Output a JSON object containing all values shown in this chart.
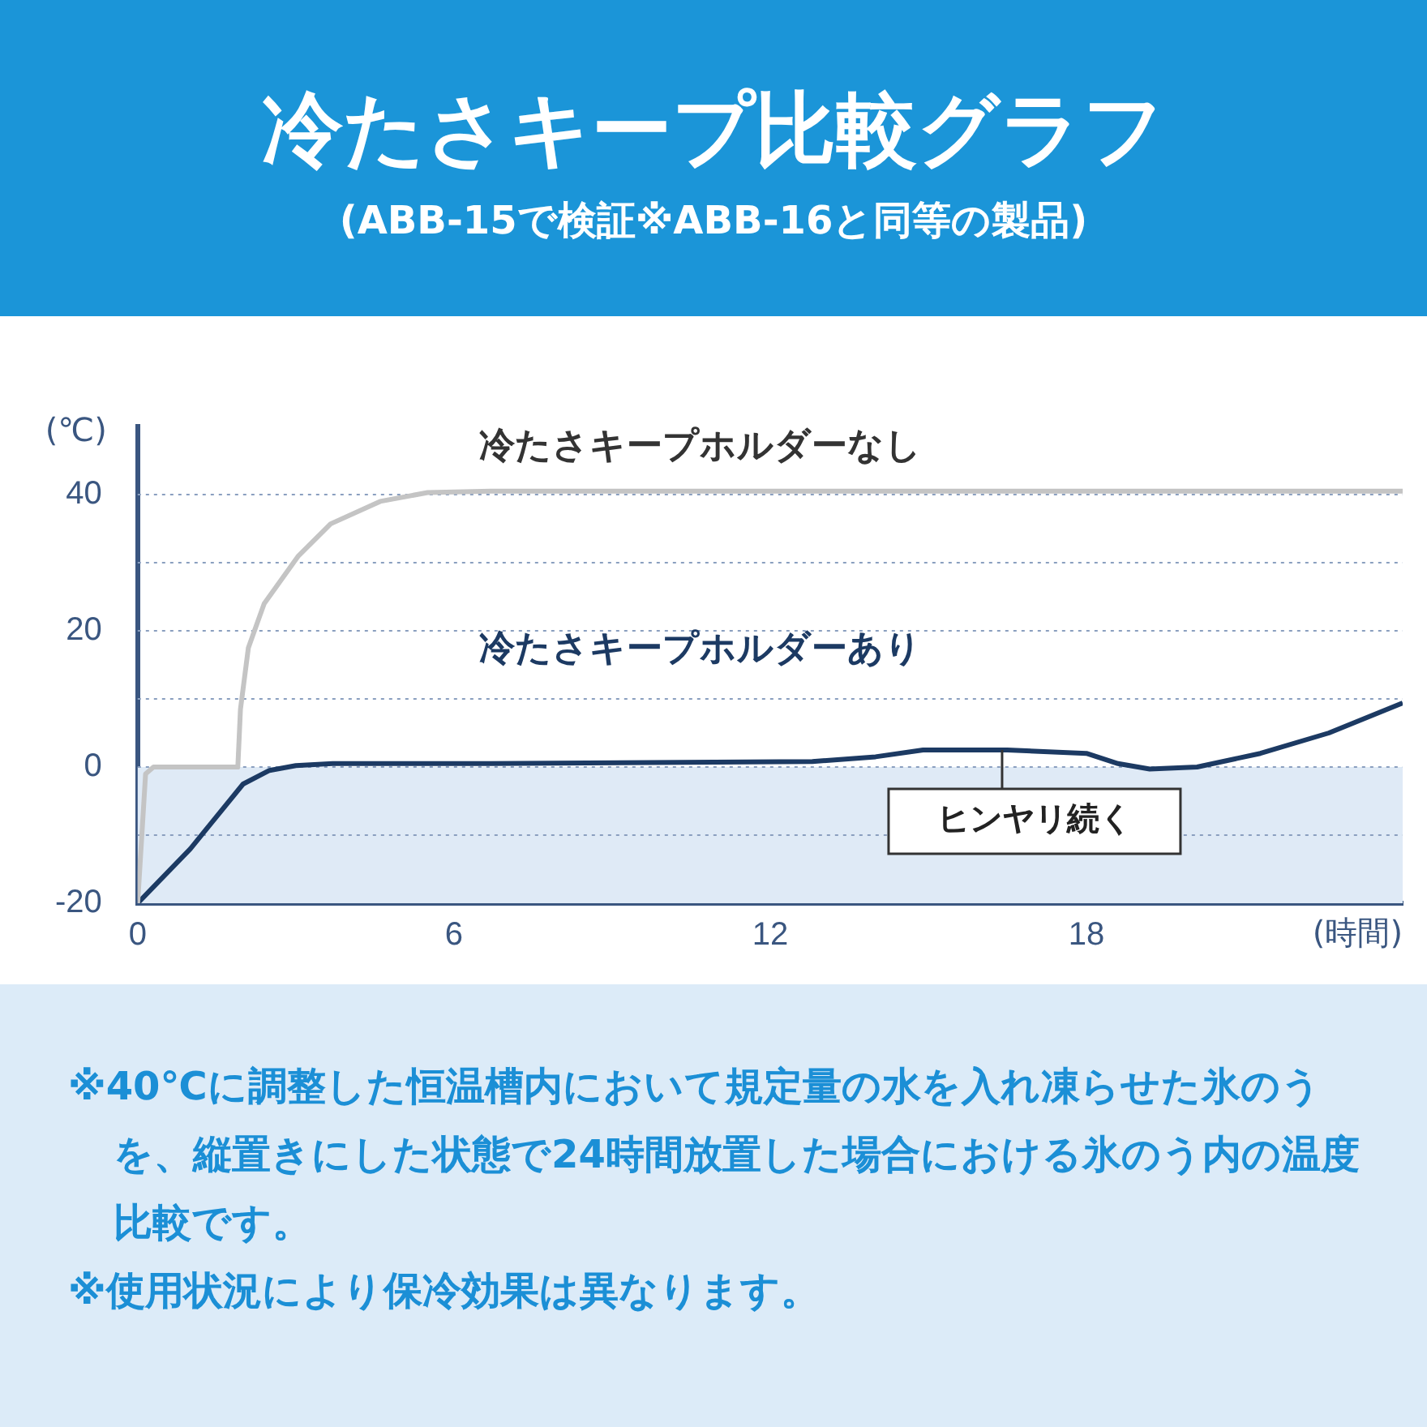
{
  "chart_data": {
    "type": "line",
    "title": "冷たさキープ比較グラフ",
    "subtitle": "(ABB-15で検証※ABB-16と同等の製品)",
    "xlabel": "(時間)",
    "ylabel": "(℃)",
    "xlim": [
      0,
      24
    ],
    "xticks": [
      0,
      6,
      12,
      18
    ],
    "ylim": [
      -20,
      50
    ],
    "yticks": [
      -20,
      {
        "value": -10,
        "label": null
      },
      0,
      {
        "value": 10,
        "label": null
      },
      20,
      {
        "value": 30,
        "label": null
      },
      40
    ],
    "grid": "y",
    "legend": false,
    "marker": "none",
    "line_style": "solid",
    "bands": [
      {
        "axis": "y",
        "from": -20,
        "to": 0,
        "color": "#dfeaf6"
      }
    ],
    "series": [
      {
        "name": "冷たさキープホルダーなし",
        "color": "#c4c4c4",
        "x": [
          0,
          0.15,
          0.3,
          1.9,
          1.95,
          2.1,
          2.4,
          3.05,
          3.66,
          4.6,
          5.5,
          6.7,
          12,
          18,
          24
        ],
        "values": [
          -20,
          -1,
          0,
          0,
          8.5,
          17.5,
          24,
          31,
          35.7,
          39,
          40.3,
          40.5,
          40.5,
          40.5,
          40.5
        ]
      },
      {
        "name": "冷たさキープホルダーあり",
        "color": "#1c3a63",
        "x": [
          0,
          1,
          2,
          2.5,
          3,
          3.7,
          6.7,
          12.8,
          14,
          14.9,
          16.5,
          18,
          18.6,
          19.2,
          20.1,
          21.3,
          22.6,
          24
        ],
        "values": [
          -20,
          -12,
          -2.5,
          -0.5,
          0.2,
          0.5,
          0.5,
          0.8,
          1.5,
          2.5,
          2.5,
          2,
          0.5,
          -0.3,
          0,
          2,
          5,
          9.4
        ]
      }
    ],
    "annotations": [
      {
        "text": "ヒンヤリ続く",
        "x": 16.4,
        "y": 2.5
      },
      "※40℃に調整した恒温槽内において規定量の水を入れ凍らせた氷のうを、縦置きにした状態で24時間放置した場合における氷のう内の温度比較です。",
      "※使用状況により保冷効果は異なります。"
    ]
  }
}
